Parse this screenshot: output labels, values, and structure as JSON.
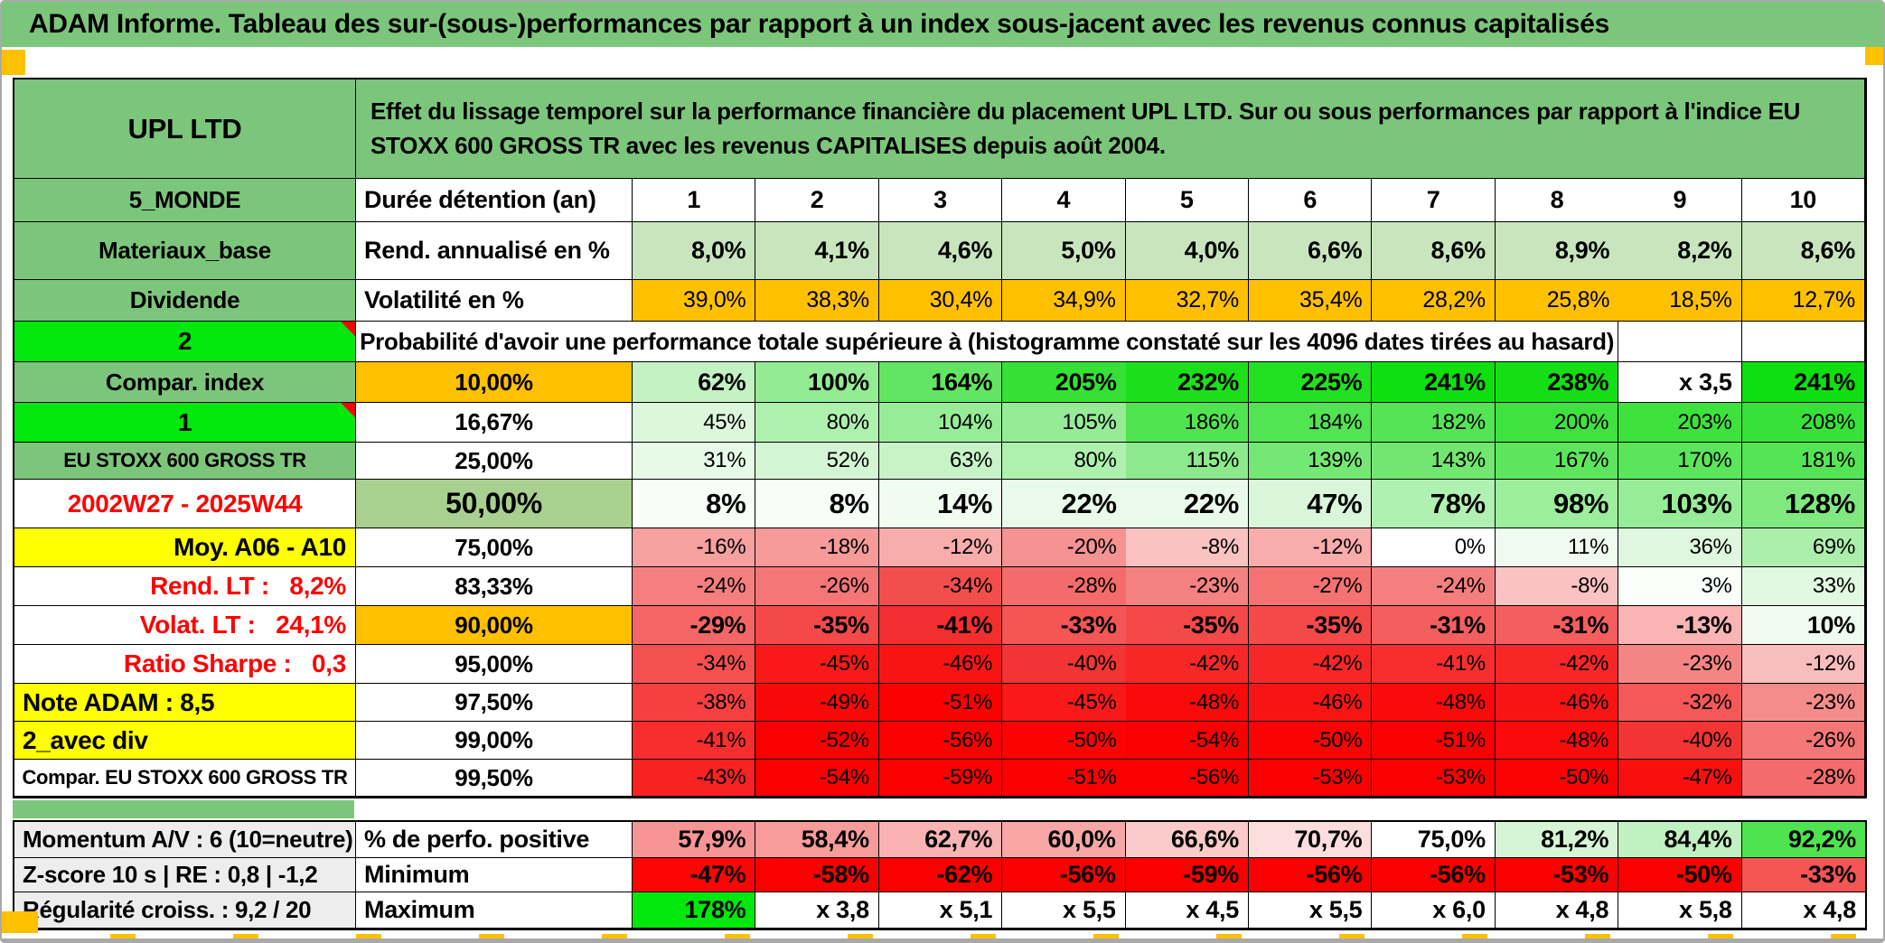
{
  "window": {
    "title": "ADAM Informe. Tableau des sur-(sous-)performances par rapport à un index sous-jacent avec les revenus connus capitalisés"
  },
  "colors": {
    "header_green": "#7CC67C",
    "bright_green": "#00E80C",
    "orange": "#FFC000",
    "yellow": "#FFFF00",
    "label_gray": "#EDEDED",
    "red_text": "#FF0000",
    "light_green_data": "#C9E5BE",
    "olive_green": "#A9D08E"
  },
  "header": {
    "fund_name": "UPL LTD",
    "description": "Effet du lissage temporel sur la performance financière du placement UPL LTD. Sur ou sous performances par rapport à l'indice EU STOXX 600 GROSS TR avec les revenus CAPITALISES depuis août 2004."
  },
  "table": {
    "columns": [
      "1",
      "2",
      "3",
      "4",
      "5",
      "6",
      "7",
      "8",
      "9",
      "10"
    ],
    "rows": [
      {
        "type": "header"
      },
      {
        "label": {
          "t": "5_MONDE",
          "bg": "#7CC67C",
          "cls": "c b f26"
        },
        "sub": {
          "t": "Durée détention (an)",
          "bg": "#FFFFFF",
          "cls": "l b f27"
        },
        "cellCls": "c b f27",
        "cells": [
          {
            "t": "1",
            "bg": "#FFFFFF"
          },
          {
            "t": "2",
            "bg": "#FFFFFF"
          },
          {
            "t": "3",
            "bg": "#FFFFFF"
          },
          {
            "t": "4",
            "bg": "#FFFFFF"
          },
          {
            "t": "5",
            "bg": "#FFFFFF"
          },
          {
            "t": "6",
            "bg": "#FFFFFF"
          },
          {
            "t": "7",
            "bg": "#FFFFFF"
          },
          {
            "t": "8",
            "bg": "#FFFFFF"
          },
          {
            "t": "9",
            "bg": "#FFFFFF"
          },
          {
            "t": "10",
            "bg": "#FFFFFF"
          }
        ]
      },
      {
        "label": {
          "t": "Materiaux_base",
          "bg": "#7CC67C",
          "cls": "c b f26"
        },
        "sub": {
          "t": "Rend. annualisé en %",
          "bg": "#FFFFFF",
          "cls": "l b f27"
        },
        "cellCls": "r b f27",
        "cells": [
          {
            "t": "8,0%",
            "bg": "#C9E5BE"
          },
          {
            "t": "4,1%",
            "bg": "#C9E5BE"
          },
          {
            "t": "4,6%",
            "bg": "#C9E5BE"
          },
          {
            "t": "5,0%",
            "bg": "#C9E5BE"
          },
          {
            "t": "4,0%",
            "bg": "#C9E5BE"
          },
          {
            "t": "6,6%",
            "bg": "#C9E5BE"
          },
          {
            "t": "8,6%",
            "bg": "#C9E5BE"
          },
          {
            "t": "8,9%",
            "bg": "#C9E5BE"
          },
          {
            "t": "8,2%",
            "bg": "#C9E5BE"
          },
          {
            "t": "8,6%",
            "bg": "#C9E5BE"
          }
        ]
      },
      {
        "label": {
          "t": "Dividende",
          "bg": "#7CC67C",
          "cls": "c b f26"
        },
        "sub": {
          "t": "Volatilité en %",
          "bg": "#FFFFFF",
          "cls": "l b f27"
        },
        "cellCls": "r f25",
        "cells": [
          {
            "t": "39,0%",
            "bg": "#FFC000"
          },
          {
            "t": "38,3%",
            "bg": "#FFC000"
          },
          {
            "t": "30,4%",
            "bg": "#FFC000"
          },
          {
            "t": "34,9%",
            "bg": "#FFC000"
          },
          {
            "t": "32,7%",
            "bg": "#FFC000"
          },
          {
            "t": "35,4%",
            "bg": "#FFC000"
          },
          {
            "t": "28,2%",
            "bg": "#FFC000"
          },
          {
            "t": "25,8%",
            "bg": "#FFC000"
          },
          {
            "t": "18,5%",
            "bg": "#FFC000"
          },
          {
            "t": "12,7%",
            "bg": "#FFC000"
          }
        ]
      },
      {
        "type": "proba",
        "label": {
          "t": "2",
          "bg": "#00E80C",
          "cls": "c b f28",
          "tri": true
        },
        "text": "Probabilité d'avoir une performance totale supérieure à (histogramme constaté sur les 4096 dates tirées au hasard)",
        "tail": [
          {
            "t": "",
            "bg": "#FFFFFF"
          },
          {
            "t": "",
            "bg": "#FFFFFF"
          }
        ]
      },
      {
        "label": {
          "t": "Compar. index",
          "bg": "#7CC67C",
          "cls": "c b f26"
        },
        "sub": {
          "t": "10,00%",
          "bg": "#FFC000",
          "cls": "c b f26"
        },
        "cellCls": "r b f27",
        "cells": [
          {
            "t": "62%",
            "bg": "#C2F1C2"
          },
          {
            "t": "100%",
            "bg": "#93EC93"
          },
          {
            "t": "164%",
            "bg": "#62E562"
          },
          {
            "t": "205%",
            "bg": "#35E135"
          },
          {
            "t": "232%",
            "bg": "#1CDF1C"
          },
          {
            "t": "225%",
            "bg": "#22E022"
          },
          {
            "t": "241%",
            "bg": "#0FDE0F"
          },
          {
            "t": "238%",
            "bg": "#14DF14"
          },
          {
            "t": "x 3,5",
            "bg": "#FFFFFF"
          },
          {
            "t": "241%",
            "bg": "#0FDE0F"
          }
        ]
      },
      {
        "label": {
          "t": "1",
          "bg": "#00E80C",
          "cls": "c b f28",
          "tri": true
        },
        "sub": {
          "t": "16,67%",
          "bg": "#FFFFFF",
          "cls": "c b f26"
        },
        "cellCls": "r f24",
        "cells": [
          {
            "t": "45%",
            "bg": "#DCF7DC"
          },
          {
            "t": "80%",
            "bg": "#AEF0AE"
          },
          {
            "t": "104%",
            "bg": "#97EC97"
          },
          {
            "t": "105%",
            "bg": "#96EC96"
          },
          {
            "t": "186%",
            "bg": "#50E450"
          },
          {
            "t": "184%",
            "bg": "#52E452"
          },
          {
            "t": "182%",
            "bg": "#55E455"
          },
          {
            "t": "200%",
            "bg": "#40E240"
          },
          {
            "t": "203%",
            "bg": "#3DE23D"
          },
          {
            "t": "208%",
            "bg": "#38E138"
          }
        ]
      },
      {
        "label": {
          "t": "EU STOXX 600 GROSS TR",
          "bg": "#7CC67C",
          "cls": "c b f22"
        },
        "sub": {
          "t": "25,00%",
          "bg": "#FFFFFF",
          "cls": "c b f26"
        },
        "cellCls": "r f24",
        "cells": [
          {
            "t": "31%",
            "bg": "#E7F9E7"
          },
          {
            "t": "52%",
            "bg": "#D4F5D4"
          },
          {
            "t": "63%",
            "bg": "#C8F2C8"
          },
          {
            "t": "80%",
            "bg": "#AEF0AE"
          },
          {
            "t": "115%",
            "bg": "#8CEA8C"
          },
          {
            "t": "139%",
            "bg": "#75E775"
          },
          {
            "t": "143%",
            "bg": "#71E671"
          },
          {
            "t": "167%",
            "bg": "#5EE55E"
          },
          {
            "t": "170%",
            "bg": "#5BE55B"
          },
          {
            "t": "181%",
            "bg": "#55E455"
          }
        ]
      },
      {
        "label": {
          "t": "2002W27 - 2025W44",
          "bg": "#FFFFFF",
          "cls": "c b f28 red"
        },
        "sub": {
          "t": "50,00%",
          "bg": "#A9D08E",
          "cls": "c b f32"
        },
        "cellCls": "r b f31",
        "cells": [
          {
            "t": "8%",
            "bg": "#F8FDF8"
          },
          {
            "t": "8%",
            "bg": "#F8FDF8"
          },
          {
            "t": "14%",
            "bg": "#F1FCF1"
          },
          {
            "t": "22%",
            "bg": "#EAFAEA"
          },
          {
            "t": "22%",
            "bg": "#EAFAEA"
          },
          {
            "t": "47%",
            "bg": "#DAF6DA"
          },
          {
            "t": "78%",
            "bg": "#B0F0B0"
          },
          {
            "t": "98%",
            "bg": "#9CED9C"
          },
          {
            "t": "103%",
            "bg": "#97EC97"
          },
          {
            "t": "128%",
            "bg": "#7FE97F"
          }
        ]
      },
      {
        "label": {
          "t": "Moy. A06 - A10",
          "bg": "#FFFF00",
          "cls": "r b f28"
        },
        "sub": {
          "t": "75,00%",
          "bg": "#FFFFFF",
          "cls": "c b f26"
        },
        "cellCls": "r f24",
        "cells": [
          {
            "t": "-16%",
            "bg": "#F7A0A0"
          },
          {
            "t": "-18%",
            "bg": "#F69A9A"
          },
          {
            "t": "-12%",
            "bg": "#F8ACAC"
          },
          {
            "t": "-20%",
            "bg": "#F59292"
          },
          {
            "t": "-8%",
            "bg": "#FBC2C2"
          },
          {
            "t": "-12%",
            "bg": "#F8ACAC"
          },
          {
            "t": "0%",
            "bg": "#FFFFFF"
          },
          {
            "t": "11%",
            "bg": "#EFFBEF"
          },
          {
            "t": "36%",
            "bg": "#DFF7DF"
          },
          {
            "t": "69%",
            "bg": "#ACEFAC"
          }
        ]
      },
      {
        "label": {
          "t": "Rend. LT :   8,2%",
          "bg": "#FFFFFF",
          "cls": "r b f28 red"
        },
        "sub": {
          "t": "83,33%",
          "bg": "#FFFFFF",
          "cls": "c b f26"
        },
        "cellCls": "r f24",
        "cells": [
          {
            "t": "-24%",
            "bg": "#F57F7F"
          },
          {
            "t": "-26%",
            "bg": "#F47676"
          },
          {
            "t": "-34%",
            "bg": "#F24E4E"
          },
          {
            "t": "-28%",
            "bg": "#F46B6B"
          },
          {
            "t": "-23%",
            "bg": "#F58282"
          },
          {
            "t": "-27%",
            "bg": "#F47272"
          },
          {
            "t": "-24%",
            "bg": "#F57F7F"
          },
          {
            "t": "-8%",
            "bg": "#FBC2C2"
          },
          {
            "t": "3%",
            "bg": "#FAFEFA"
          },
          {
            "t": "33%",
            "bg": "#E1F8E1"
          }
        ]
      },
      {
        "label": {
          "t": "Volat. LT :   24,1%",
          "bg": "#FFFFFF",
          "cls": "r b f28 red"
        },
        "sub": {
          "t": "90,00%",
          "bg": "#FFC000",
          "cls": "c b f26"
        },
        "cellCls": "r b f27",
        "cells": [
          {
            "t": "-29%",
            "bg": "#F56666"
          },
          {
            "t": "-35%",
            "bg": "#F34949"
          },
          {
            "t": "-41%",
            "bg": "#F22E2E"
          },
          {
            "t": "-33%",
            "bg": "#F45555"
          },
          {
            "t": "-35%",
            "bg": "#F34949"
          },
          {
            "t": "-35%",
            "bg": "#F34949"
          },
          {
            "t": "-31%",
            "bg": "#F45E5E"
          },
          {
            "t": "-31%",
            "bg": "#F45E5E"
          },
          {
            "t": "-13%",
            "bg": "#FAB4B4"
          },
          {
            "t": "10%",
            "bg": "#F0FBF0"
          }
        ]
      },
      {
        "label": {
          "t": "Ratio Sharpe :   0,3",
          "bg": "#FFFFFF",
          "cls": "r b f28 red"
        },
        "sub": {
          "t": "95,00%",
          "bg": "#FFFFFF",
          "cls": "c b f26"
        },
        "cellCls": "r f24",
        "cells": [
          {
            "t": "-34%",
            "bg": "#F45050"
          },
          {
            "t": "-45%",
            "bg": "#F91919"
          },
          {
            "t": "-46%",
            "bg": "#F91414"
          },
          {
            "t": "-40%",
            "bg": "#F23434"
          },
          {
            "t": "-42%",
            "bg": "#F82727"
          },
          {
            "t": "-42%",
            "bg": "#F82727"
          },
          {
            "t": "-41%",
            "bg": "#F82E2E"
          },
          {
            "t": "-42%",
            "bg": "#F82727"
          },
          {
            "t": "-23%",
            "bg": "#F58585"
          },
          {
            "t": "-12%",
            "bg": "#FABDBD"
          }
        ]
      },
      {
        "label": {
          "t": "Note ADAM : 8,5",
          "bg": "#FFFF00",
          "cls": "l b f28"
        },
        "sub": {
          "t": "97,50%",
          "bg": "#FFFFFF",
          "cls": "c b f26"
        },
        "cellCls": "r f24",
        "cells": [
          {
            "t": "-38%",
            "bg": "#F64040"
          },
          {
            "t": "-49%",
            "bg": "#FA0808"
          },
          {
            "t": "-51%",
            "bg": "#FB0000"
          },
          {
            "t": "-45%",
            "bg": "#F91919"
          },
          {
            "t": "-48%",
            "bg": "#FA0A0A"
          },
          {
            "t": "-46%",
            "bg": "#F91414"
          },
          {
            "t": "-48%",
            "bg": "#FA0A0A"
          },
          {
            "t": "-46%",
            "bg": "#F91414"
          },
          {
            "t": "-32%",
            "bg": "#F45858"
          },
          {
            "t": "-23%",
            "bg": "#F58C8C"
          }
        ]
      },
      {
        "label": {
          "t": "2_avec div",
          "bg": "#FFFF00",
          "cls": "l b f28"
        },
        "sub": {
          "t": "99,00%",
          "bg": "#FFFFFF",
          "cls": "c b f26"
        },
        "cellCls": "r f24",
        "cells": [
          {
            "t": "-41%",
            "bg": "#F82E2E"
          },
          {
            "t": "-52%",
            "bg": "#FB0000"
          },
          {
            "t": "-56%",
            "bg": "#FB0000"
          },
          {
            "t": "-50%",
            "bg": "#FB0303"
          },
          {
            "t": "-54%",
            "bg": "#FB0000"
          },
          {
            "t": "-50%",
            "bg": "#FB0303"
          },
          {
            "t": "-51%",
            "bg": "#FB0000"
          },
          {
            "t": "-48%",
            "bg": "#FA0A0A"
          },
          {
            "t": "-40%",
            "bg": "#F23434"
          },
          {
            "t": "-26%",
            "bg": "#F47676"
          }
        ]
      },
      {
        "label": {
          "t": "Compar. EU STOXX 600 GROSS TR",
          "bg": "#FFFFFF",
          "cls": "c b f22"
        },
        "sub": {
          "t": "99,50%",
          "bg": "#FFFFFF",
          "cls": "c b f26"
        },
        "cellCls": "r f24",
        "cells": [
          {
            "t": "-43%",
            "bg": "#F92222"
          },
          {
            "t": "-54%",
            "bg": "#FB0000"
          },
          {
            "t": "-59%",
            "bg": "#FB0000"
          },
          {
            "t": "-51%",
            "bg": "#FB0000"
          },
          {
            "t": "-56%",
            "bg": "#FB0000"
          },
          {
            "t": "-53%",
            "bg": "#FB0000"
          },
          {
            "t": "-53%",
            "bg": "#FB0000"
          },
          {
            "t": "-50%",
            "bg": "#FB0303"
          },
          {
            "t": "-47%",
            "bg": "#FA0F0F"
          },
          {
            "t": "-28%",
            "bg": "#F46B6B"
          }
        ]
      }
    ]
  },
  "bottom": {
    "rows": [
      {
        "label": {
          "t": "Momentum A/V : 6 (10=neutre)",
          "bg": "#EDEDED",
          "cls": "l b f26"
        },
        "sub": {
          "t": "% de perfo. positive",
          "bg": "#FFFFFF",
          "cls": "l b f27"
        },
        "cellCls": "r b f27",
        "cells": [
          {
            "t": "57,9%",
            "bg": "#F79595"
          },
          {
            "t": "58,4%",
            "bg": "#F79B9B"
          },
          {
            "t": "62,7%",
            "bg": "#F9B3B3"
          },
          {
            "t": "60,0%",
            "bg": "#F8A7A7"
          },
          {
            "t": "66,6%",
            "bg": "#FBCACA"
          },
          {
            "t": "70,7%",
            "bg": "#FCDEDE"
          },
          {
            "t": "75,0%",
            "bg": "#FFFFFF"
          },
          {
            "t": "81,2%",
            "bg": "#D6F5D6"
          },
          {
            "t": "84,4%",
            "bg": "#C0F1C0"
          },
          {
            "t": "92,2%",
            "bg": "#4FE44F"
          }
        ]
      },
      {
        "label": {
          "t": "Z-score 10 s | RE : 0,8 | -1,2",
          "bg": "#EDEDED",
          "cls": "l b f26"
        },
        "sub": {
          "t": "Minimum",
          "bg": "#FFFFFF",
          "cls": "l b f27"
        },
        "cellCls": "r b f27",
        "cells": [
          {
            "t": "-47%",
            "bg": "#FB0505"
          },
          {
            "t": "-58%",
            "bg": "#FB0000"
          },
          {
            "t": "-62%",
            "bg": "#FB0000"
          },
          {
            "t": "-56%",
            "bg": "#FB0000"
          },
          {
            "t": "-59%",
            "bg": "#FB0000"
          },
          {
            "t": "-56%",
            "bg": "#FB0000"
          },
          {
            "t": "-56%",
            "bg": "#FB0000"
          },
          {
            "t": "-53%",
            "bg": "#FB0000"
          },
          {
            "t": "-50%",
            "bg": "#FB0000"
          },
          {
            "t": "-33%",
            "bg": "#F45555"
          }
        ]
      },
      {
        "label": {
          "t": "Régularité croiss. : 9,2 / 20",
          "bg": "#EDEDED",
          "cls": "l b f26"
        },
        "sub": {
          "t": "Maximum",
          "bg": "#FFFFFF",
          "cls": "l b f27"
        },
        "cellCls": "r b f27",
        "cells": [
          {
            "t": "178%",
            "bg": "#00E80C"
          },
          {
            "t": "x 3,8",
            "bg": "#FFFFFF"
          },
          {
            "t": "x 5,1",
            "bg": "#FFFFFF"
          },
          {
            "t": "x 5,5",
            "bg": "#FFFFFF"
          },
          {
            "t": "x 4,5",
            "bg": "#FFFFFF"
          },
          {
            "t": "x 5,5",
            "bg": "#FFFFFF"
          },
          {
            "t": "x 6,0",
            "bg": "#FFFFFF"
          },
          {
            "t": "x 4,8",
            "bg": "#FFFFFF"
          },
          {
            "t": "x 5,8",
            "bg": "#FFFFFF"
          },
          {
            "t": "x 4,8",
            "bg": "#FFFFFF"
          }
        ]
      }
    ]
  }
}
